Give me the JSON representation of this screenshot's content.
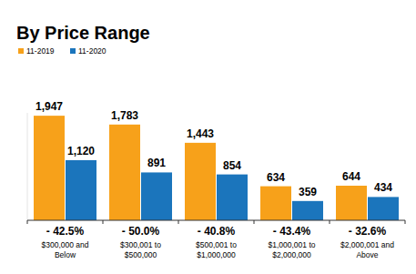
{
  "chart_data": {
    "type": "bar",
    "title": "By Price Range",
    "categories": [
      "$300,000 and Below",
      "$300,001 to $500,000",
      "$500,001 to $1,000,000",
      "$1,000,001 to $2,000,000",
      "$2,000,001 and Above"
    ],
    "series": [
      {
        "name": "11-2019",
        "color": "#f7a11a",
        "values": [
          1947,
          1783,
          1443,
          634,
          644
        ],
        "value_labels": [
          "1,947",
          "1,783",
          "1,443",
          "634",
          "644"
        ]
      },
      {
        "name": "11-2020",
        "color": "#1b75bc",
        "values": [
          1120,
          891,
          854,
          359,
          434
        ],
        "value_labels": [
          "1,120",
          "891",
          "854",
          "359",
          "434"
        ]
      }
    ],
    "annotations": [
      "- 42.5%",
      "- 50.0%",
      "- 40.8%",
      "- 43.4%",
      "- 32.6%"
    ],
    "ylim": [
      0,
      2000
    ],
    "grid": false,
    "legend": "top-left",
    "data_labels": true,
    "tick_labels": "x"
  }
}
